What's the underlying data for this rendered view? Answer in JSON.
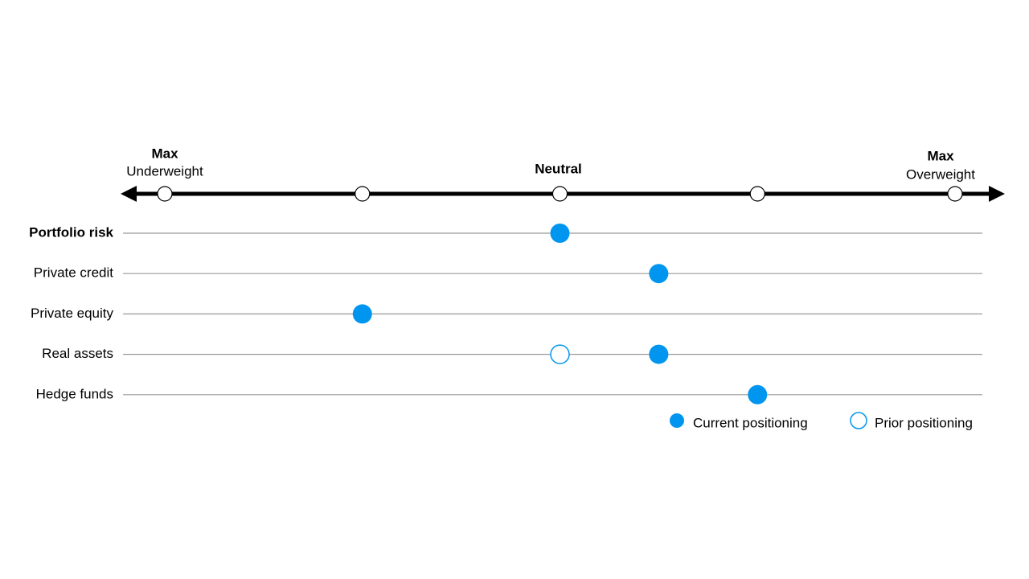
{
  "chart_data": {
    "type": "dot",
    "categories": [
      "Portfolio risk",
      "Private credit",
      "Private equity",
      "Real assets",
      "Hedge funds"
    ],
    "category_bold": [
      true,
      false,
      false,
      false,
      false
    ],
    "series": [
      {
        "name": "Current positioning",
        "color": "#0096f0",
        "filled": true,
        "values": [
          0,
          0.5,
          -1,
          0.5,
          1
        ]
      },
      {
        "name": "Prior positioning",
        "color": "#0096f0",
        "filled": false,
        "values": [
          null,
          null,
          null,
          0,
          null
        ]
      }
    ],
    "xlim": [
      -2,
      2
    ],
    "xticks": [
      {
        "value": -2,
        "label": [
          "Max",
          "Underweight"
        ]
      },
      {
        "value": -1,
        "label": null
      },
      {
        "value": 0,
        "label": "Neutral"
      },
      {
        "value": 1,
        "label": null
      },
      {
        "value": 2,
        "label": [
          "Max",
          "Overweight"
        ]
      }
    ]
  }
}
